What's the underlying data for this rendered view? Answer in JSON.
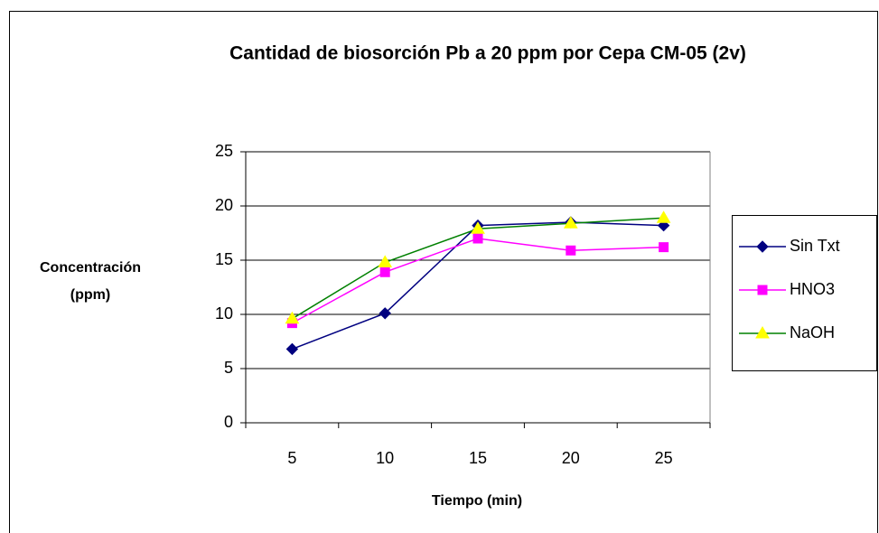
{
  "chart_data": {
    "type": "line",
    "title": "Cantidad de biosorción Pb a 20 ppm por Cepa CM-05 (2v)",
    "xlabel": "Tiempo (min)",
    "ylabel": [
      "Concentración",
      "(ppm)"
    ],
    "categories": [
      5,
      10,
      15,
      20,
      25
    ],
    "series": [
      {
        "name": "Sin Txt",
        "color": "#000080",
        "line_color": "#000080",
        "marker": "diamond",
        "values": [
          6.8,
          10.1,
          18.2,
          18.5,
          18.2
        ]
      },
      {
        "name": "HNO3",
        "color": "#ff00ff",
        "line_color": "#ff00ff",
        "marker": "square",
        "values": [
          9.2,
          13.9,
          17.0,
          15.9,
          16.2
        ]
      },
      {
        "name": "NaOH",
        "color": "#ffff00",
        "line_color": "#008000",
        "marker": "triangle",
        "values": [
          9.6,
          14.8,
          17.9,
          18.4,
          18.9
        ]
      }
    ],
    "ylim": [
      0,
      25
    ],
    "yticks": [
      0,
      5,
      10,
      15,
      20,
      25
    ],
    "grid": true,
    "legend": "right"
  }
}
